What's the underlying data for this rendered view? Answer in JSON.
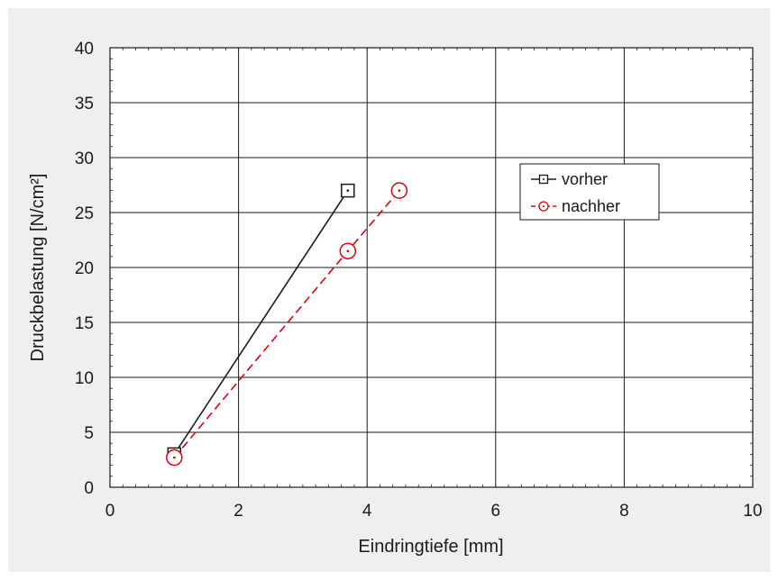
{
  "chart_data": {
    "type": "line",
    "title": "",
    "xlabel": "Eindringtiefe [mm]",
    "ylabel": "Druckbelastung [N/cm²]",
    "xlim": [
      0,
      10
    ],
    "ylim": [
      0,
      40
    ],
    "x_ticks": [
      "0",
      "2",
      "4",
      "6",
      "8",
      "10"
    ],
    "y_ticks": [
      "0",
      "5",
      "10",
      "15",
      "20",
      "25",
      "30",
      "35",
      "40"
    ],
    "grid": true,
    "legend_position": "upper-right",
    "series": [
      {
        "name": "vorher",
        "color": "#1a1a1a",
        "line_style": "solid",
        "marker": "square-with-dot",
        "x": [
          1.0,
          3.7
        ],
        "y": [
          3.0,
          27.0
        ]
      },
      {
        "name": "nachher",
        "color": "#e3000f",
        "line_style": "dashed",
        "marker": "circle-with-dot",
        "x": [
          1.0,
          3.7,
          4.5
        ],
        "y": [
          2.7,
          21.5,
          27.0
        ]
      }
    ]
  }
}
